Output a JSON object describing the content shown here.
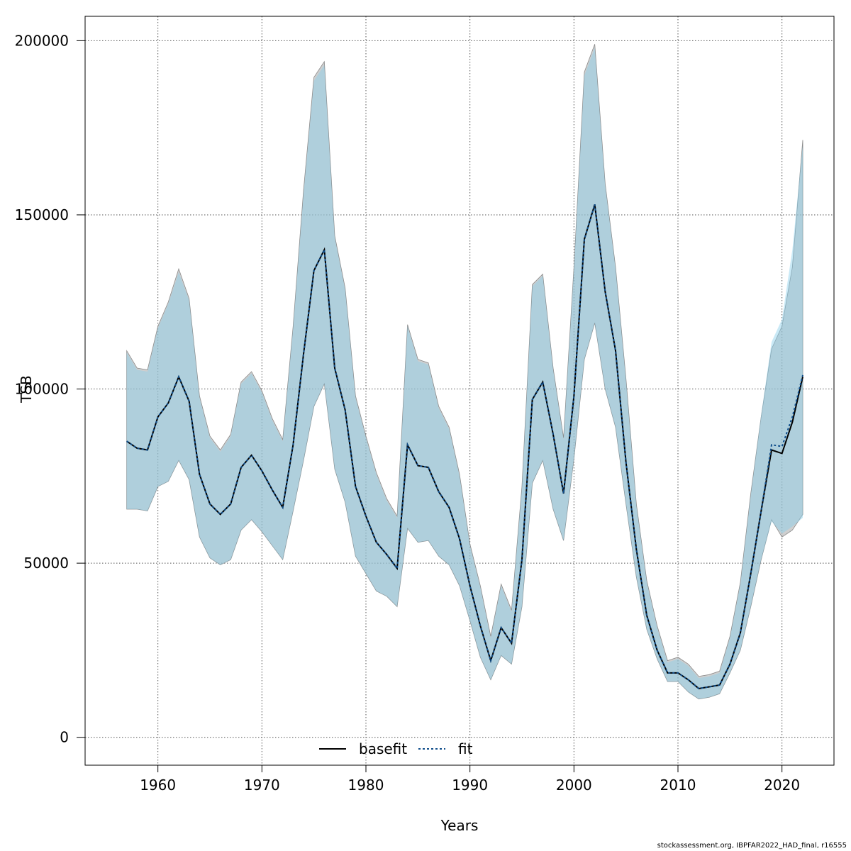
{
  "chart_data": {
    "type": "line",
    "title": "",
    "xlabel": "Years",
    "ylabel": "TSB",
    "xlim": [
      1953,
      2025
    ],
    "ylim": [
      -8000,
      207000
    ],
    "xticks": [
      1960,
      1970,
      1980,
      1990,
      2000,
      2010,
      2020
    ],
    "xtick_labels": [
      "1960",
      "1970",
      "1980",
      "1990",
      "2000",
      "2010",
      "2020"
    ],
    "yticks": [
      0,
      50000,
      100000,
      150000,
      200000
    ],
    "ytick_labels": [
      "0",
      "50000",
      "100000",
      "150000",
      "200000"
    ],
    "grid": true,
    "legend_position": "bottom-center",
    "colors": {
      "basefit_band": "#a8a8a8",
      "fit_band": "#87ceeb",
      "basefit_line": "#000000",
      "fit_line": "#104e8b"
    },
    "x": [
      1957,
      1958,
      1959,
      1960,
      1961,
      1962,
      1963,
      1964,
      1965,
      1966,
      1967,
      1968,
      1969,
      1970,
      1971,
      1972,
      1973,
      1974,
      1975,
      1976,
      1977,
      1978,
      1979,
      1980,
      1981,
      1982,
      1983,
      1984,
      1985,
      1986,
      1987,
      1988,
      1989,
      1990,
      1991,
      1992,
      1993,
      1994,
      1995,
      1996,
      1997,
      1998,
      1999,
      2000,
      2001,
      2002,
      2003,
      2004,
      2005,
      2006,
      2007,
      2008,
      2009,
      2010,
      2011,
      2012,
      2013,
      2014,
      2015,
      2016,
      2017,
      2018,
      2019,
      2020,
      2021,
      2022
    ],
    "series": [
      {
        "name": "basefit",
        "values": [
          85000,
          83000,
          82500,
          92000,
          96000,
          103500,
          96500,
          75500,
          67000,
          64000,
          67000,
          77500,
          81000,
          76500,
          71000,
          66000,
          84000,
          110000,
          134000,
          140000,
          106000,
          94000,
          72000,
          63500,
          56000,
          52500,
          48500,
          84000,
          78000,
          77500,
          70500,
          66000,
          57000,
          43500,
          32000,
          22000,
          31500,
          27000,
          51000,
          97000,
          102000,
          87000,
          70000,
          98000,
          143000,
          153000,
          128000,
          111000,
          79000,
          54000,
          35000,
          25000,
          18500,
          18500,
          16500,
          14000,
          14500,
          15000,
          21000,
          30000,
          47000,
          65000,
          82500,
          81500,
          90500,
          103500
        ],
        "upper": [
          111000,
          106000,
          105500,
          118000,
          125000,
          134500,
          126000,
          98000,
          86500,
          82500,
          87000,
          102000,
          105000,
          99500,
          91500,
          85500,
          118000,
          157000,
          189500,
          194000,
          144000,
          129000,
          98000,
          86500,
          76000,
          68500,
          63500,
          118500,
          108500,
          107500,
          95000,
          89000,
          75500,
          55500,
          43500,
          29000,
          44000,
          36500,
          72000,
          130000,
          133000,
          106000,
          86000,
          135000,
          191000,
          199000,
          159000,
          135000,
          103000,
          67000,
          45000,
          32000,
          22000,
          23000,
          21000,
          17500,
          18000,
          19000,
          29000,
          44500,
          70000,
          92000,
          111500,
          118000,
          135000,
          171500
        ],
        "lower": [
          65500,
          65500,
          65000,
          72000,
          73500,
          79500,
          74000,
          57500,
          51500,
          49500,
          51000,
          59500,
          62500,
          59000,
          55000,
          51000,
          65000,
          79500,
          95000,
          101500,
          77000,
          67500,
          52000,
          47000,
          42000,
          40500,
          37500,
          60000,
          56000,
          56500,
          52000,
          49500,
          43500,
          33500,
          23000,
          16500,
          23500,
          21000,
          37500,
          73000,
          79500,
          65500,
          56500,
          80000,
          108500,
          119000,
          100000,
          89000,
          67000,
          46000,
          31000,
          22500,
          16000,
          16000,
          13000,
          11000,
          11500,
          12500,
          18500,
          25000,
          37500,
          51000,
          62500,
          57500,
          59500,
          64000
        ]
      },
      {
        "name": "fit",
        "values": [
          85000,
          83000,
          82500,
          92000,
          96000,
          103500,
          96500,
          75500,
          67000,
          64000,
          67000,
          77500,
          81000,
          76500,
          71000,
          66000,
          84000,
          110000,
          134000,
          140000,
          106000,
          94000,
          72000,
          63500,
          56000,
          52500,
          48500,
          84000,
          78000,
          77500,
          70500,
          66000,
          57000,
          43500,
          32000,
          22000,
          31500,
          27000,
          51000,
          97000,
          102000,
          87000,
          70000,
          98000,
          143000,
          153000,
          128000,
          111000,
          79000,
          54000,
          35000,
          25000,
          18500,
          18500,
          16500,
          14000,
          14500,
          15000,
          21000,
          30000,
          47000,
          65000,
          84000,
          83500,
          92000,
          104000
        ],
        "upper": [
          110500,
          105500,
          105000,
          117500,
          124500,
          133500,
          125500,
          97500,
          86000,
          82000,
          86500,
          101500,
          104500,
          99000,
          91000,
          85000,
          117500,
          156000,
          188500,
          193000,
          143500,
          128500,
          97500,
          86000,
          75500,
          68000,
          63000,
          118000,
          108000,
          107000,
          94500,
          88500,
          75000,
          55000,
          43000,
          28500,
          43500,
          36000,
          71500,
          129500,
          132500,
          105500,
          85500,
          134500,
          190000,
          198000,
          158500,
          134500,
          102500,
          66500,
          44500,
          31500,
          21500,
          22500,
          20500,
          17000,
          17500,
          18500,
          28500,
          44000,
          69500,
          92500,
          113500,
          120000,
          140000,
          170000
        ],
        "lower": [
          65500,
          65500,
          65000,
          72000,
          73500,
          79500,
          74000,
          57500,
          51500,
          49500,
          51000,
          59500,
          62500,
          59000,
          55000,
          51000,
          65000,
          79500,
          95000,
          101500,
          77000,
          67500,
          52000,
          47000,
          42000,
          40500,
          37500,
          60000,
          56000,
          56500,
          52000,
          49500,
          43500,
          33500,
          23000,
          16500,
          23500,
          21000,
          37500,
          73000,
          79500,
          65500,
          56500,
          80000,
          108500,
          119000,
          100000,
          89000,
          67000,
          46000,
          31000,
          22500,
          16000,
          16000,
          13000,
          11000,
          11500,
          12500,
          18500,
          25000,
          37500,
          51000,
          62000,
          58500,
          60500,
          63000
        ]
      }
    ],
    "footnote": "stockassessment.org, IBPFAR2022_HAD_final, r16555"
  }
}
